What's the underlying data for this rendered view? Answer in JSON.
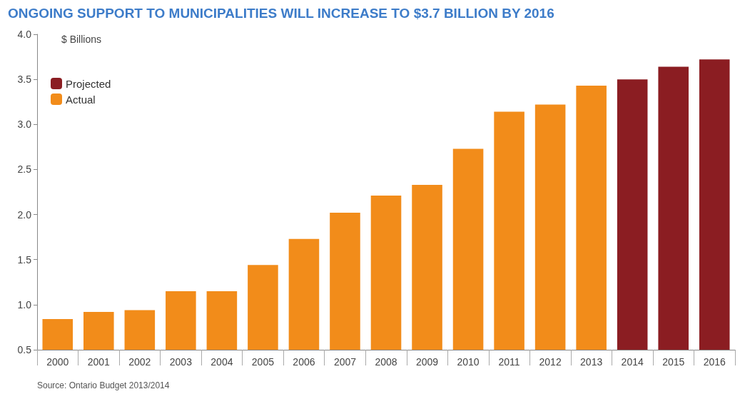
{
  "chart_data": {
    "type": "bar",
    "title": "ONGOING SUPPORT TO MUNICIPALITIES WILL INCREASE TO $3.7 BILLION BY 2016",
    "ylabel": "$ Billions",
    "categories": [
      "2000",
      "2001",
      "2002",
      "2003",
      "2004",
      "2005",
      "2006",
      "2007",
      "2008",
      "2009",
      "2010",
      "2011",
      "2012",
      "2013",
      "2014",
      "2015",
      "2016"
    ],
    "series": [
      {
        "name": "Projected",
        "color": "#8b1d22",
        "values": [
          null,
          null,
          null,
          null,
          null,
          null,
          null,
          null,
          null,
          null,
          null,
          null,
          null,
          null,
          3.5,
          3.64,
          3.72
        ]
      },
      {
        "name": "Actual",
        "color": "#f28c1a",
        "values": [
          0.84,
          0.92,
          0.94,
          1.15,
          1.15,
          1.44,
          1.73,
          2.02,
          2.21,
          2.33,
          2.73,
          3.14,
          3.22,
          3.43,
          null,
          null,
          null
        ]
      }
    ],
    "ylim": [
      0.5,
      4.0
    ],
    "yticks": [
      {
        "value": 0.5,
        "label": "0.5"
      },
      {
        "value": 1,
        "label": "1.0"
      },
      {
        "value": 1.5,
        "label": "1.5"
      },
      {
        "value": 2,
        "label": "2.0"
      },
      {
        "value": 2.5,
        "label": "2.5"
      },
      {
        "value": 3,
        "label": "3.0"
      },
      {
        "value": 3.5,
        "label": "3.5"
      },
      {
        "value": 4,
        "label": "4.0"
      }
    ],
    "grid": false,
    "legend": "top left",
    "annotations": [
      "Source: Ontario Budget 2013/2014"
    ]
  }
}
